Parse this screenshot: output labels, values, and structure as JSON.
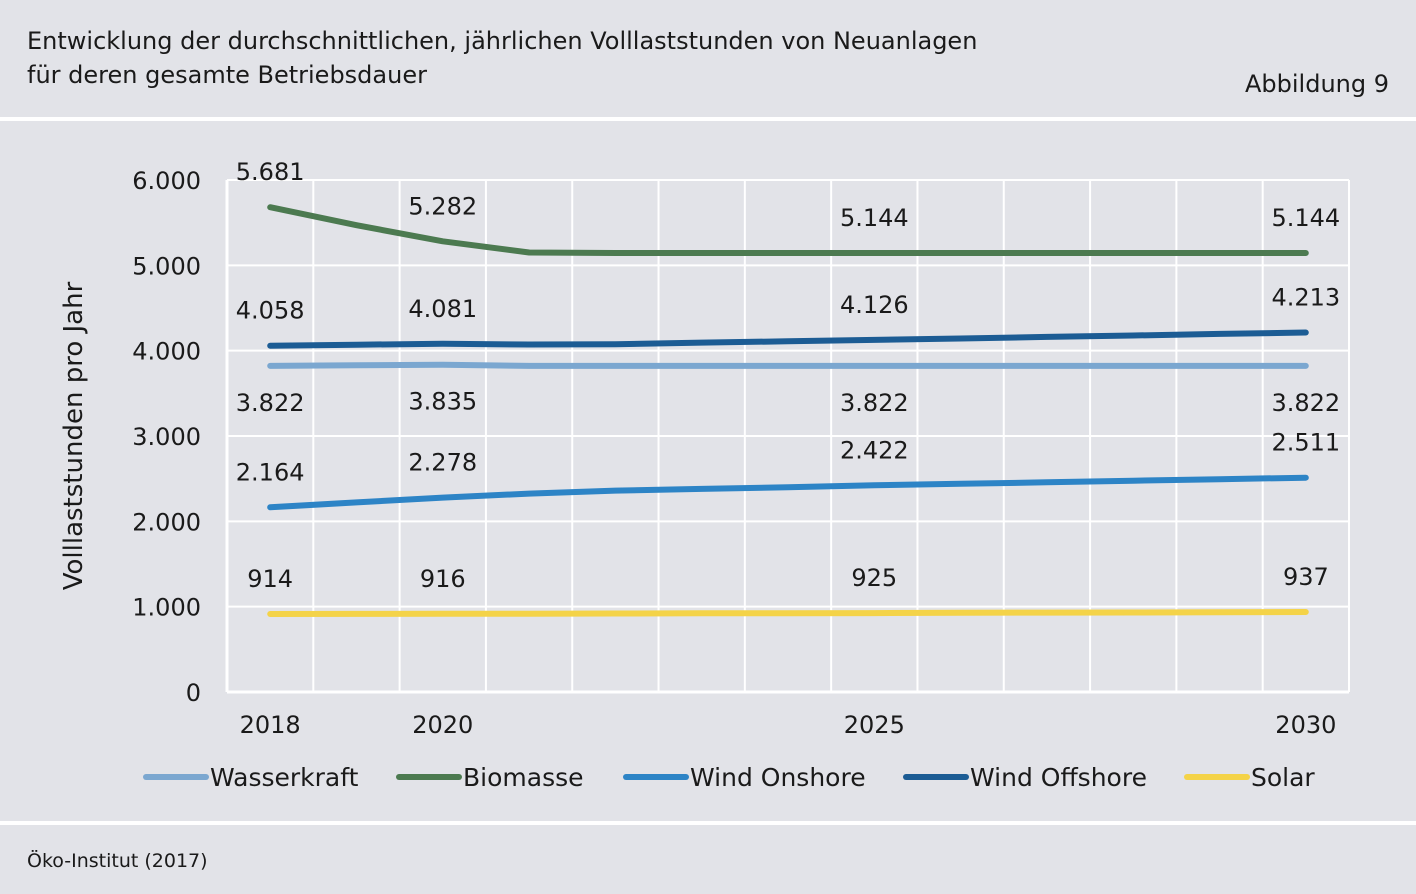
{
  "header": {
    "title_line1": "Entwicklung der durchschnittlichen, jährlichen Volllaststunden von Neuanlagen",
    "title_line2": "für deren gesamte Betriebsdauer",
    "figure_label": "Abbildung 9"
  },
  "footer": {
    "source": "Öko-Institut (2017)"
  },
  "colors": {
    "background": "#e2e3e8",
    "grid": "#ffffff",
    "Wasserkraft": "#7ba7d0",
    "Biomasse": "#4c7a50",
    "Wind Onshore": "#2d84c6",
    "Wind Offshore": "#1c5c94",
    "Solar": "#f4d348"
  },
  "chart_data": {
    "type": "line",
    "ylabel": "Volllaststunden pro Jahr",
    "xlabel": "",
    "ylim": [
      0,
      6000
    ],
    "yticks": [
      0,
      1000,
      2000,
      3000,
      4000,
      5000,
      6000
    ],
    "ytick_labels": [
      "0",
      "1.000",
      "2.000",
      "3.000",
      "4.000",
      "5.000",
      "6.000"
    ],
    "x": [
      2018,
      2019,
      2020,
      2021,
      2022,
      2023,
      2024,
      2025,
      2026,
      2027,
      2028,
      2029,
      2030
    ],
    "xtick_labels": [
      {
        "x": 2018,
        "label": "2018"
      },
      {
        "x": 2020,
        "label": "2020"
      },
      {
        "x": 2025,
        "label": "2025"
      },
      {
        "x": 2030,
        "label": "2030"
      }
    ],
    "grid": true,
    "legend_position": "bottom",
    "series": [
      {
        "name": "Wasserkraft",
        "values": [
          3822,
          3828,
          3835,
          3822,
          3822,
          3822,
          3822,
          3822,
          3822,
          3822,
          3822,
          3822,
          3822
        ],
        "labels": [
          {
            "x": 2018,
            "text": "3.822",
            "pos": "below"
          },
          {
            "x": 2020,
            "text": "3.835",
            "pos": "below"
          },
          {
            "x": 2025,
            "text": "3.822",
            "pos": "below"
          },
          {
            "x": 2030,
            "text": "3.822",
            "pos": "below"
          }
        ]
      },
      {
        "name": "Biomasse",
        "values": [
          5681,
          5470,
          5282,
          5150,
          5144,
          5144,
          5144,
          5144,
          5144,
          5144,
          5144,
          5144,
          5144
        ],
        "labels": [
          {
            "x": 2018,
            "text": "5.681",
            "pos": "above"
          },
          {
            "x": 2020,
            "text": "5.282",
            "pos": "above"
          },
          {
            "x": 2025,
            "text": "5.144",
            "pos": "above"
          },
          {
            "x": 2030,
            "text": "5.144",
            "pos": "above"
          }
        ]
      },
      {
        "name": "Wind Onshore",
        "values": [
          2164,
          2222,
          2278,
          2325,
          2360,
          2380,
          2400,
          2422,
          2440,
          2458,
          2476,
          2494,
          2511
        ],
        "labels": [
          {
            "x": 2018,
            "text": "2.164",
            "pos": "above"
          },
          {
            "x": 2020,
            "text": "2.278",
            "pos": "above"
          },
          {
            "x": 2025,
            "text": "2.422",
            "pos": "above"
          },
          {
            "x": 2030,
            "text": "2.511",
            "pos": "above"
          }
        ]
      },
      {
        "name": "Wind Offshore",
        "values": [
          4058,
          4070,
          4081,
          4072,
          4075,
          4095,
          4110,
          4126,
          4143,
          4161,
          4178,
          4196,
          4213
        ],
        "labels": [
          {
            "x": 2018,
            "text": "4.058",
            "pos": "above"
          },
          {
            "x": 2020,
            "text": "4.081",
            "pos": "above"
          },
          {
            "x": 2025,
            "text": "4.126",
            "pos": "above"
          },
          {
            "x": 2030,
            "text": "4.213",
            "pos": "above"
          }
        ]
      },
      {
        "name": "Solar",
        "values": [
          914,
          915,
          916,
          918,
          920,
          922,
          924,
          925,
          928,
          930,
          932,
          935,
          937
        ],
        "labels": [
          {
            "x": 2018,
            "text": "914",
            "pos": "above"
          },
          {
            "x": 2020,
            "text": "916",
            "pos": "above"
          },
          {
            "x": 2025,
            "text": "925",
            "pos": "above"
          },
          {
            "x": 2030,
            "text": "937",
            "pos": "above"
          }
        ]
      }
    ]
  }
}
